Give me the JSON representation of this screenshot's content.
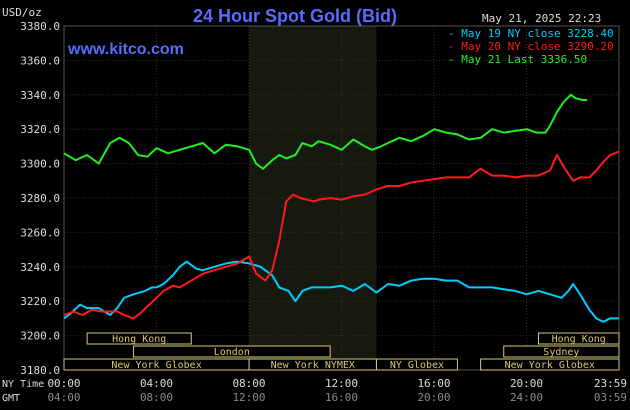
{
  "chart_data": {
    "type": "line",
    "title": "24 Hour Spot Gold (Bid)",
    "website": "www.kitco.com",
    "units": "USD/oz",
    "timestamp": "May 21, 2025 22:23",
    "ylim": [
      3180,
      3380
    ],
    "yticks": [
      "3380.0",
      "3360.0",
      "3340.0",
      "3320.0",
      "3300.0",
      "3280.0",
      "3260.0",
      "3240.0",
      "3220.0",
      "3200.0",
      "3180.0"
    ],
    "x_ticks_ny": [
      "00:00",
      "04:00",
      "08:00",
      "12:00",
      "16:00",
      "20:00",
      "23:59"
    ],
    "x_ticks_gmt": [
      "04:00",
      "08:00",
      "12:00",
      "16:00",
      "20:00",
      "24:00",
      "03:59"
    ],
    "x_axis_labels": {
      "ny": "NY Time",
      "gmt": "GMT"
    },
    "grid": true,
    "legend_position": "top-right",
    "legend": [
      {
        "text": "May 19 NY close 3228.40",
        "color": "#00ccff"
      },
      {
        "text": "May 20 NY close 3290.20",
        "color": "#ff1a1a"
      },
      {
        "text": "May 21 Last 3336.50",
        "color": "#22ee22"
      }
    ],
    "highlight_band_hours": [
      8.0,
      13.5
    ],
    "sessions": [
      {
        "name": "Hong Kong",
        "start": 1.0,
        "end": 5.5
      },
      {
        "name": "London",
        "start": 3.0,
        "end": 11.5
      },
      {
        "name": "New York Globex",
        "start": 0.0,
        "end": 8.0
      },
      {
        "name": "New York NYMEX",
        "start": 8.0,
        "end": 13.5
      },
      {
        "name": "NY Globex",
        "start": 13.5,
        "end": 17.0
      },
      {
        "name": "Hong Kong",
        "start": 20.5,
        "end": 23.98
      },
      {
        "name": "Sydney",
        "start": 19.0,
        "end": 23.98
      },
      {
        "name": "New York Globex",
        "start": 18.0,
        "end": 23.98
      }
    ],
    "series": [
      {
        "color": "#00ccff",
        "x": [
          0,
          0.3,
          0.7,
          1,
          1.5,
          2,
          2.3,
          2.6,
          3,
          3.5,
          3.8,
          4,
          4.3,
          4.7,
          5,
          5.3,
          5.7,
          6,
          6.5,
          7,
          7.5,
          8,
          8.5,
          9,
          9.3,
          9.7,
          10,
          10.3,
          10.7,
          11,
          11.5,
          12,
          12.5,
          13,
          13.5,
          14,
          14.5,
          15,
          15.5,
          16,
          16.5,
          17,
          17.5,
          18,
          18.5,
          19,
          19.5,
          20,
          20.5,
          21,
          21.5,
          21.8,
          22,
          22.3,
          22.7,
          23,
          23.3,
          23.6,
          23.98
        ],
        "values": [
          3210,
          3213,
          3218,
          3216,
          3216,
          3212,
          3216,
          3222,
          3224,
          3226,
          3228,
          3228,
          3230,
          3235,
          3240,
          3243,
          3239,
          3238,
          3240,
          3242,
          3243,
          3242,
          3240,
          3235,
          3228,
          3226,
          3220,
          3226,
          3228,
          3228,
          3228,
          3229,
          3226,
          3230,
          3225,
          3230,
          3229,
          3232,
          3233,
          3233,
          3232,
          3232,
          3228,
          3228,
          3228,
          3227,
          3226,
          3224,
          3226,
          3224,
          3222,
          3226,
          3230,
          3224,
          3215,
          3210,
          3208,
          3210,
          3210
        ]
      },
      {
        "color": "#ff1a1a",
        "x": [
          0,
          0.4,
          0.8,
          1.2,
          1.6,
          2,
          2.3,
          2.6,
          3,
          3.3,
          3.6,
          4,
          4.3,
          4.7,
          5,
          5.5,
          6,
          6.5,
          7,
          7.5,
          8,
          8.3,
          8.7,
          9,
          9.3,
          9.6,
          9.9,
          10.2,
          10.5,
          10.8,
          11,
          11.5,
          12,
          12.5,
          13,
          13.5,
          14,
          14.5,
          15,
          15.5,
          16,
          16.5,
          17,
          17.5,
          18,
          18.5,
          19,
          19.5,
          20,
          20.5,
          21,
          21.3,
          21.6,
          21.8,
          22,
          22.3,
          22.7,
          23,
          23.3,
          23.6,
          23.98
        ],
        "values": [
          3212,
          3214,
          3212,
          3215,
          3214,
          3214,
          3214,
          3212,
          3210,
          3213,
          3217,
          3222,
          3226,
          3229,
          3228,
          3232,
          3236,
          3238,
          3240,
          3242,
          3246,
          3236,
          3232,
          3238,
          3255,
          3278,
          3282,
          3280,
          3279,
          3278,
          3279,
          3280,
          3279,
          3281,
          3282,
          3285,
          3287,
          3287,
          3289,
          3290,
          3291,
          3292,
          3292,
          3292,
          3297,
          3293,
          3293,
          3292,
          3293,
          3293,
          3296,
          3305,
          3298,
          3294,
          3290,
          3292,
          3292,
          3296,
          3301,
          3305,
          3307
        ]
      },
      {
        "color": "#22ee22",
        "x": [
          0,
          0.5,
          1,
          1.5,
          2,
          2.4,
          2.8,
          3.2,
          3.6,
          4,
          4.5,
          5,
          5.5,
          6,
          6.5,
          7,
          7.5,
          8,
          8.3,
          8.6,
          9,
          9.3,
          9.6,
          10,
          10.3,
          10.7,
          11,
          11.5,
          12,
          12.5,
          13,
          13.3,
          13.7,
          14,
          14.5,
          15,
          15.5,
          16,
          16.5,
          17,
          17.5,
          18,
          18.5,
          19,
          19.5,
          20,
          20.4,
          20.8,
          21,
          21.3,
          21.6,
          21.9,
          22.1,
          22.4,
          22.6
        ],
        "values": [
          3306,
          3302,
          3305,
          3300,
          3312,
          3315,
          3312,
          3305,
          3304,
          3309,
          3306,
          3308,
          3310,
          3312,
          3306,
          3311,
          3310,
          3308,
          3300,
          3297,
          3302,
          3305,
          3303,
          3305,
          3312,
          3310,
          3313,
          3311,
          3308,
          3314,
          3310,
          3308,
          3310,
          3312,
          3315,
          3313,
          3316,
          3320,
          3318,
          3317,
          3314,
          3315,
          3320,
          3318,
          3319,
          3320,
          3318,
          3318,
          3322,
          3330,
          3336,
          3340,
          3338,
          3337,
          3337
        ]
      }
    ]
  }
}
